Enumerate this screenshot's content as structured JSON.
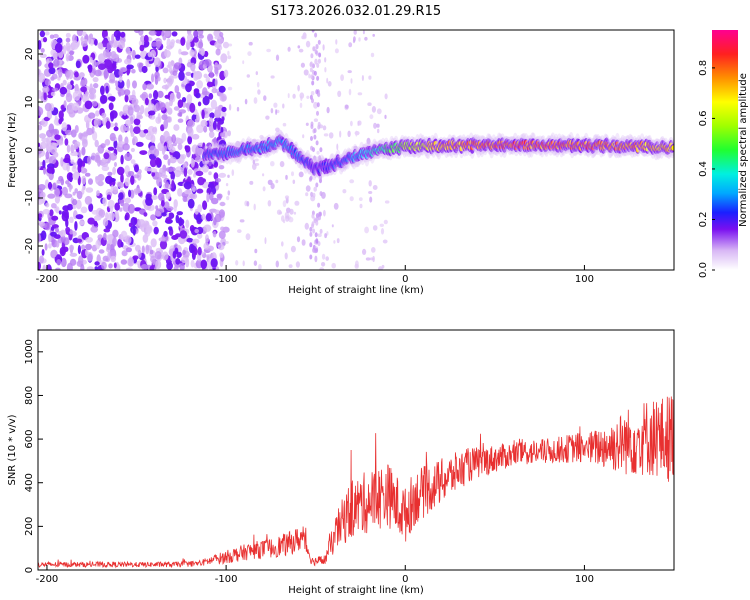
{
  "title": "S173.2026.032.01.29.R15",
  "colors": {
    "snr_line": "#e83030",
    "spec_light": "#d9b8f5",
    "spec_dark": "#6a10e8",
    "axis": "#000000"
  },
  "chart_data": [
    {
      "type": "heatmap",
      "xlabel": "Height of straight line (km)",
      "ylabel": "Frequency (Hz)",
      "xlim": [
        -205,
        150
      ],
      "ylim": [
        -25,
        25
      ],
      "xticks": [
        -200,
        -100,
        0,
        100
      ],
      "yticks": [
        -20,
        -10,
        0,
        10,
        20
      ],
      "colorbar": {
        "label": "Normalized spectral amplitude",
        "range": [
          0.0,
          0.95
        ],
        "ticks": [
          0.0,
          0.2,
          0.4,
          0.6,
          0.8
        ]
      },
      "ridge": {
        "x": [
          -110,
          -100,
          -90,
          -80,
          -70,
          -60,
          -50,
          -40,
          -30,
          -20,
          -10,
          0,
          20,
          40,
          60,
          80,
          100,
          120,
          150
        ],
        "freq": [
          -1,
          -0.5,
          0,
          0.5,
          2,
          -1,
          -4,
          -3,
          -1.5,
          -0.5,
          0.3,
          0.8,
          0.8,
          1,
          1,
          1,
          1,
          0.8,
          0.5
        ],
        "amplitude": [
          0.25,
          0.3,
          0.3,
          0.3,
          0.35,
          0.3,
          0.2,
          0.25,
          0.3,
          0.4,
          0.5,
          0.6,
          0.8,
          0.88,
          0.9,
          0.88,
          0.88,
          0.85,
          0.75
        ]
      }
    },
    {
      "type": "line",
      "xlabel": "Height of straight line (km)",
      "ylabel": "SNR (10 * v/v)",
      "xlim": [
        -205,
        150
      ],
      "ylim": [
        0,
        1100
      ],
      "xticks": [
        -200,
        -100,
        0,
        100
      ],
      "yticks": [
        0,
        200,
        400,
        600,
        800,
        1000
      ],
      "series": [
        {
          "x": [
            -205,
            -190,
            -170,
            -150,
            -130,
            -115,
            -105,
            -95,
            -85,
            -75,
            -65,
            -57,
            -52,
            -45,
            -38,
            -32,
            -25,
            -18,
            -10,
            -5,
            0,
            5,
            15,
            25,
            35,
            45,
            55,
            65,
            75,
            85,
            95,
            105,
            115,
            125,
            135,
            145,
            150
          ],
          "y": [
            25,
            25,
            25,
            25,
            25,
            30,
            50,
            70,
            90,
            100,
            120,
            150,
            40,
            45,
            180,
            260,
            300,
            320,
            350,
            300,
            250,
            330,
            380,
            430,
            480,
            500,
            520,
            540,
            540,
            550,
            560,
            560,
            570,
            590,
            610,
            600,
            620
          ],
          "noise_amplitude": [
            12,
            12,
            12,
            12,
            12,
            14,
            25,
            35,
            40,
            45,
            55,
            60,
            20,
            25,
            90,
            130,
            140,
            150,
            150,
            140,
            130,
            130,
            110,
            100,
            80,
            70,
            60,
            60,
            60,
            60,
            70,
            80,
            120,
            160,
            180,
            200,
            220
          ]
        }
      ]
    }
  ]
}
